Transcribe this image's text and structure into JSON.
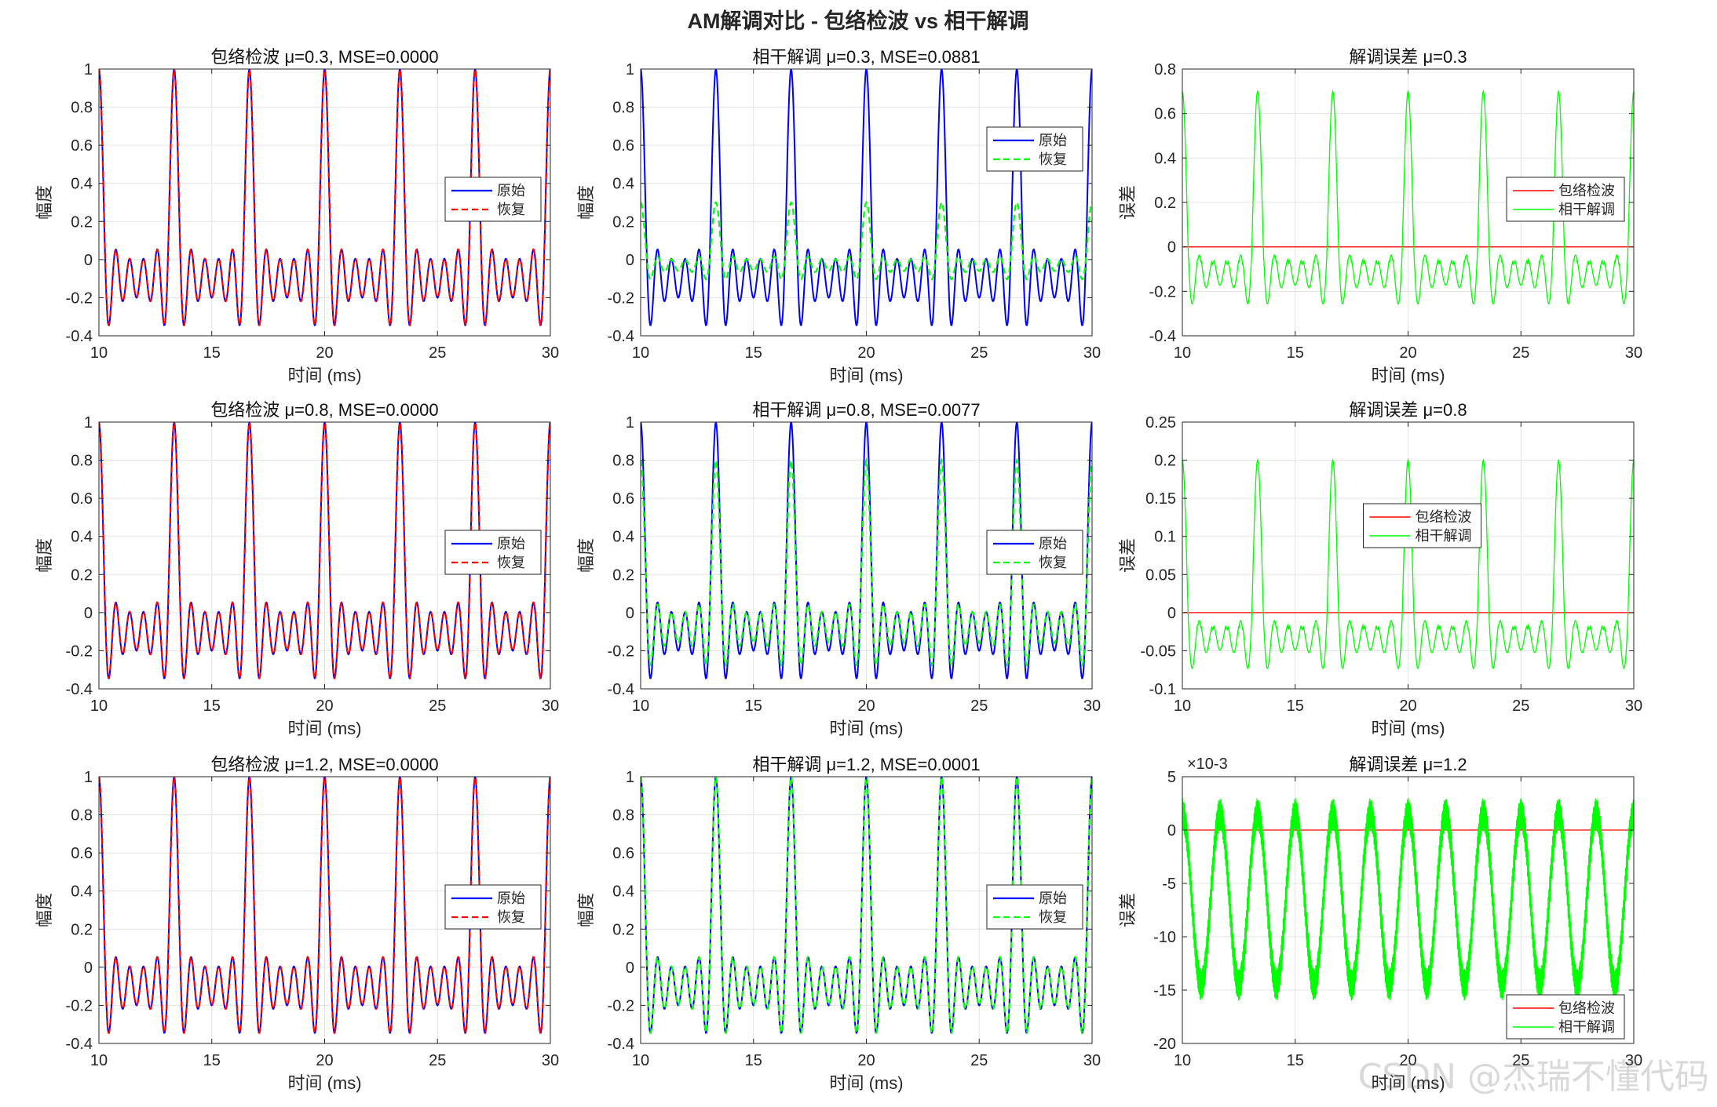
{
  "figure": {
    "suptitle": "AM解调对比 - 包络检波 vs 相干解调",
    "watermark": "CSDN @杰瑞不懂代码",
    "colors": {
      "original": "#0000ff",
      "envelope": "#ff0000",
      "coherent": "#00ff00"
    }
  },
  "chart_data": [
    {
      "type": "line",
      "mu": 0.3,
      "method": "envelope",
      "title": "包络检波 μ=0.3, MSE=0.0000",
      "xlabel": "时间 (ms)",
      "ylabel": "幅度",
      "xlim": [
        10,
        30
      ],
      "ylim": [
        -0.4,
        1
      ],
      "xticks": [
        10,
        15,
        20,
        25,
        30
      ],
      "yticks": [
        -0.4,
        -0.2,
        0,
        0.2,
        0.4,
        0.6,
        0.8,
        1
      ],
      "yticklabels": [
        "-0.4",
        "-0.2",
        "0",
        "0.2",
        "0.4",
        "0.6",
        "0.8",
        "1"
      ],
      "legend": [
        "原始",
        "恢复"
      ],
      "legend_pos": "east",
      "grid": true,
      "series": [
        {
          "name": "原始",
          "color": "#0000ff",
          "dash": "solid",
          "scale": 1,
          "offset": 0
        },
        {
          "name": "恢复",
          "color": "#ff0000",
          "dash": "dashed",
          "scale": 1,
          "offset": 0
        }
      ]
    },
    {
      "type": "line",
      "mu": 0.3,
      "method": "coherent",
      "title": "相干解调 μ=0.3, MSE=0.0881",
      "xlabel": "时间 (ms)",
      "ylabel": "幅度",
      "xlim": [
        10,
        30
      ],
      "ylim": [
        -0.4,
        1
      ],
      "xticks": [
        10,
        15,
        20,
        25,
        30
      ],
      "yticks": [
        -0.4,
        -0.2,
        0,
        0.2,
        0.4,
        0.6,
        0.8,
        1
      ],
      "yticklabels": [
        "-0.4",
        "-0.2",
        "0",
        "0.2",
        "0.4",
        "0.6",
        "0.8",
        "1"
      ],
      "legend": [
        "原始",
        "恢复"
      ],
      "legend_pos": "northeast",
      "grid": true,
      "series": [
        {
          "name": "原始",
          "color": "#0000ff",
          "dash": "solid",
          "scale": 1,
          "offset": 0
        },
        {
          "name": "恢复",
          "color": "#00ff00",
          "dash": "dashed",
          "scale": 0.3,
          "offset": 0
        }
      ]
    },
    {
      "type": "line",
      "mu": 0.3,
      "method": "error",
      "title": "解调误差 μ=0.3",
      "xlabel": "时间 (ms)",
      "ylabel": "误差",
      "xlim": [
        10,
        30
      ],
      "ylim": [
        -0.4,
        0.8
      ],
      "xticks": [
        10,
        15,
        20,
        25,
        30
      ],
      "yticks": [
        -0.4,
        -0.2,
        0,
        0.2,
        0.4,
        0.6,
        0.8
      ],
      "yticklabels": [
        "-0.4",
        "-0.2",
        "0",
        "0.2",
        "0.4",
        "0.6",
        "0.8"
      ],
      "legend": [
        "包络检波",
        "相干解调"
      ],
      "legend_pos": "east",
      "grid": true,
      "series": [
        {
          "name": "包络检波",
          "color": "#ff0000",
          "dash": "solid",
          "scale": 0,
          "offset": 0
        },
        {
          "name": "相干解调",
          "color": "#00ff00",
          "dash": "solid",
          "scale": 0.7,
          "offset": 0
        }
      ]
    },
    {
      "type": "line",
      "mu": 0.8,
      "method": "envelope",
      "title": "包络检波 μ=0.8, MSE=0.0000",
      "xlabel": "时间 (ms)",
      "ylabel": "幅度",
      "xlim": [
        10,
        30
      ],
      "ylim": [
        -0.4,
        1
      ],
      "xticks": [
        10,
        15,
        20,
        25,
        30
      ],
      "yticks": [
        -0.4,
        -0.2,
        0,
        0.2,
        0.4,
        0.6,
        0.8,
        1
      ],
      "yticklabels": [
        "-0.4",
        "-0.2",
        "0",
        "0.2",
        "0.4",
        "0.6",
        "0.8",
        "1"
      ],
      "legend": [
        "原始",
        "恢复"
      ],
      "legend_pos": "east",
      "grid": true,
      "series": [
        {
          "name": "原始",
          "color": "#0000ff",
          "dash": "solid",
          "scale": 1,
          "offset": 0
        },
        {
          "name": "恢复",
          "color": "#ff0000",
          "dash": "dashed",
          "scale": 1,
          "offset": 0
        }
      ]
    },
    {
      "type": "line",
      "mu": 0.8,
      "method": "coherent",
      "title": "相干解调 μ=0.8, MSE=0.0077",
      "xlabel": "时间 (ms)",
      "ylabel": "幅度",
      "xlim": [
        10,
        30
      ],
      "ylim": [
        -0.4,
        1
      ],
      "xticks": [
        10,
        15,
        20,
        25,
        30
      ],
      "yticks": [
        -0.4,
        -0.2,
        0,
        0.2,
        0.4,
        0.6,
        0.8,
        1
      ],
      "yticklabels": [
        "-0.4",
        "-0.2",
        "0",
        "0.2",
        "0.4",
        "0.6",
        "0.8",
        "1"
      ],
      "legend": [
        "原始",
        "恢复"
      ],
      "legend_pos": "east",
      "grid": true,
      "series": [
        {
          "name": "原始",
          "color": "#0000ff",
          "dash": "solid",
          "scale": 1,
          "offset": 0
        },
        {
          "name": "恢复",
          "color": "#00ff00",
          "dash": "dashed",
          "scale": 0.8,
          "offset": 0
        }
      ]
    },
    {
      "type": "line",
      "mu": 0.8,
      "method": "error",
      "title": "解调误差 μ=0.8",
      "xlabel": "时间 (ms)",
      "ylabel": "误差",
      "xlim": [
        10,
        30
      ],
      "ylim": [
        -0.1,
        0.25
      ],
      "xticks": [
        10,
        15,
        20,
        25,
        30
      ],
      "yticks": [
        -0.1,
        -0.05,
        0,
        0.05,
        0.1,
        0.15,
        0.2,
        0.25
      ],
      "yticklabels": [
        "-0.1",
        "-0.05",
        "0",
        "0.05",
        "0.1",
        "0.15",
        "0.2",
        "0.25"
      ],
      "legend": [
        "包络检波",
        "相干解调"
      ],
      "legend_pos": "center",
      "grid": true,
      "series": [
        {
          "name": "包络检波",
          "color": "#ff0000",
          "dash": "solid",
          "scale": 0,
          "offset": 0
        },
        {
          "name": "相干解调",
          "color": "#00ff00",
          "dash": "solid",
          "scale": 0.2,
          "offset": 0
        }
      ]
    },
    {
      "type": "line",
      "mu": 1.2,
      "method": "envelope",
      "title": "包络检波 μ=1.2, MSE=0.0000",
      "xlabel": "时间 (ms)",
      "ylabel": "幅度",
      "xlim": [
        10,
        30
      ],
      "ylim": [
        -0.4,
        1
      ],
      "xticks": [
        10,
        15,
        20,
        25,
        30
      ],
      "yticks": [
        -0.4,
        -0.2,
        0,
        0.2,
        0.4,
        0.6,
        0.8,
        1
      ],
      "yticklabels": [
        "-0.4",
        "-0.2",
        "0",
        "0.2",
        "0.4",
        "0.6",
        "0.8",
        "1"
      ],
      "legend": [
        "原始",
        "恢复"
      ],
      "legend_pos": "east",
      "grid": true,
      "series": [
        {
          "name": "原始",
          "color": "#0000ff",
          "dash": "solid",
          "scale": 1,
          "offset": 0
        },
        {
          "name": "恢复",
          "color": "#ff0000",
          "dash": "dashed",
          "scale": 1,
          "offset": 0
        }
      ]
    },
    {
      "type": "line",
      "mu": 1.2,
      "method": "coherent",
      "title": "相干解调 μ=1.2, MSE=0.0001",
      "xlabel": "时间 (ms)",
      "ylabel": "幅度",
      "xlim": [
        10,
        30
      ],
      "ylim": [
        -0.4,
        1
      ],
      "xticks": [
        10,
        15,
        20,
        25,
        30
      ],
      "yticks": [
        -0.4,
        -0.2,
        0,
        0.2,
        0.4,
        0.6,
        0.8,
        1
      ],
      "yticklabels": [
        "-0.4",
        "-0.2",
        "0",
        "0.2",
        "0.4",
        "0.6",
        "0.8",
        "1"
      ],
      "legend": [
        "原始",
        "恢复"
      ],
      "legend_pos": "east",
      "grid": true,
      "series": [
        {
          "name": "原始",
          "color": "#0000ff",
          "dash": "solid",
          "scale": 1,
          "offset": 0
        },
        {
          "name": "恢复",
          "color": "#00ff00",
          "dash": "dashed",
          "scale": 1,
          "offset": 0
        }
      ]
    },
    {
      "type": "line",
      "mu": 1.2,
      "method": "error",
      "title": "解调误差 μ=1.2",
      "xlabel": "时间 (ms)",
      "ylabel": "误差",
      "xlim": [
        10,
        30
      ],
      "ylim": [
        -20,
        5
      ],
      "exponent_label": "×10-3",
      "xticks": [
        10,
        15,
        20,
        25,
        30
      ],
      "yticks": [
        -20,
        -15,
        -10,
        -5,
        0,
        5
      ],
      "yticklabels": [
        "-20",
        "-15",
        "-10",
        "-5",
        "0",
        "5"
      ],
      "legend": [
        "包络检波",
        "相干解调"
      ],
      "legend_pos": "southeast",
      "grid": true,
      "series": [
        {
          "name": "包络检波",
          "color": "#ff0000",
          "dash": "solid",
          "scale": 0,
          "offset": 0
        },
        {
          "name": "相干解调",
          "color": "#00ff00",
          "dash": "solid",
          "scale": 0,
          "offset": 0,
          "ripple": true
        }
      ]
    }
  ]
}
